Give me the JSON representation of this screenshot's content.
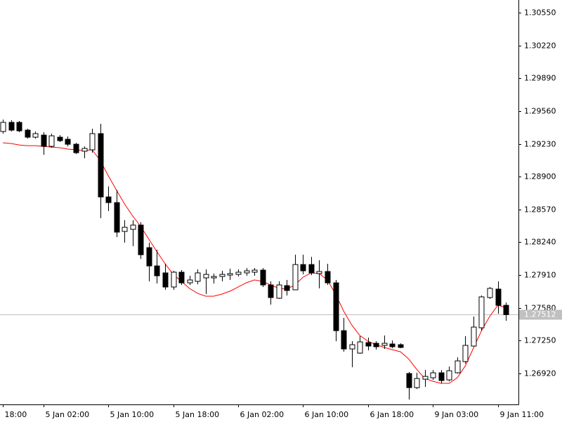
{
  "chart_data": {
    "type": "candlestick",
    "categories": [
      "18:00",
      null,
      null,
      null,
      null,
      "5 Jan 02:00",
      null,
      null,
      null,
      null,
      null,
      null,
      null,
      "5 Jan 10:00",
      null,
      null,
      null,
      null,
      null,
      null,
      null,
      "5 Jan 18:00",
      null,
      null,
      null,
      null,
      null,
      null,
      null,
      "6 Jan 02:00",
      null,
      null,
      null,
      null,
      null,
      null,
      null,
      "6 Jan 10:00",
      null,
      null,
      null,
      null,
      null,
      null,
      null,
      "6 Jan 18:00",
      null,
      null,
      null,
      null,
      null,
      null,
      null,
      "9 Jan 03:00",
      null,
      null,
      null,
      null,
      null,
      null,
      null,
      "9 Jan 11:00",
      null
    ],
    "open": [
      1.29354,
      1.29446,
      1.29446,
      1.29368,
      1.29297,
      1.29318,
      1.29205,
      1.29297,
      1.29276,
      1.29226,
      1.29156,
      1.2917,
      1.29333,
      1.28696,
      1.28639,
      1.28349,
      1.2837,
      1.28413,
      1.28186,
      1.28002,
      1.27932,
      1.2779,
      1.27939,
      1.27832,
      1.27847,
      1.27882,
      1.27882,
      1.27896,
      1.2791,
      1.27917,
      1.27932,
      1.27939,
      1.2796,
      1.27811,
      1.27677,
      1.27804,
      1.27762,
      1.28016,
      1.28016,
      1.27925,
      1.27946,
      1.27832,
      1.27351,
      1.27167,
      1.27125,
      1.27231,
      1.27224,
      1.27203,
      1.27217,
      1.2721,
      1.2692,
      1.26778,
      1.26863,
      1.26877,
      1.26927,
      1.26856,
      1.26927,
      1.2704,
      1.27196,
      1.2738,
      1.27684,
      1.27769,
      1.27606
    ],
    "high": [
      1.29474,
      1.29467,
      1.2946,
      1.29382,
      1.29354,
      1.29347,
      1.29333,
      1.29318,
      1.29304,
      1.29241,
      1.29205,
      1.29382,
      1.29432,
      1.28802,
      1.28766,
      1.28462,
      1.28462,
      1.28441,
      1.28236,
      1.28165,
      1.28024,
      1.27953,
      1.2796,
      1.27903,
      1.27967,
      1.27967,
      1.27925,
      1.27953,
      1.27974,
      1.27967,
      1.27981,
      1.27981,
      1.27981,
      1.27847,
      1.27847,
      1.27861,
      1.28115,
      1.28115,
      1.28094,
      1.28059,
      1.28024,
      1.27861,
      1.27479,
      1.27245,
      1.27295,
      1.27281,
      1.27245,
      1.27302,
      1.27252,
      1.27224,
      1.26934,
      1.26927,
      1.26955,
      1.26955,
      1.26955,
      1.2699,
      1.27082,
      1.27295,
      1.27493,
      1.27705,
      1.2779,
      1.27847,
      1.27634
    ],
    "low": [
      1.29333,
      1.29354,
      1.29347,
      1.29283,
      1.29283,
      1.2912,
      1.29191,
      1.29248,
      1.29205,
      1.29127,
      1.29085,
      1.29141,
      1.28483,
      1.28554,
      1.28292,
      1.28236,
      1.28201,
      1.28073,
      1.27847,
      1.27825,
      1.27762,
      1.27762,
      1.27811,
      1.27811,
      1.27818,
      1.27719,
      1.27825,
      1.27847,
      1.27861,
      1.27896,
      1.27903,
      1.27903,
      1.2779,
      1.27613,
      1.2767,
      1.27705,
      1.27762,
      1.27917,
      1.2791,
      1.27776,
      1.27811,
      1.27245,
      1.27139,
      1.26983,
      1.27118,
      1.27153,
      1.2716,
      1.27167,
      1.27175,
      1.27175,
      1.26658,
      1.26764,
      1.26785,
      1.26856,
      1.26821,
      1.26842,
      1.2692,
      1.27019,
      1.27196,
      1.27351,
      1.2767,
      1.27521,
      1.2745
    ],
    "close": [
      1.29446,
      1.29368,
      1.29361,
      1.29297,
      1.29333,
      1.29205,
      1.29311,
      1.29262,
      1.29226,
      1.29141,
      1.29184,
      1.29333,
      1.28696,
      1.28639,
      1.28342,
      1.28391,
      1.28413,
      1.28115,
      1.28002,
      1.27903,
      1.2779,
      1.27939,
      1.27832,
      1.27861,
      1.27932,
      1.27917,
      1.27896,
      1.27917,
      1.27925,
      1.27939,
      1.27953,
      1.2796,
      1.27811,
      1.27684,
      1.27811,
      1.27755,
      1.28016,
      1.27953,
      1.27932,
      1.27946,
      1.27832,
      1.27351,
      1.27167,
      1.2721,
      1.27238,
      1.27196,
      1.27189,
      1.27224,
      1.27189,
      1.27182,
      1.26778,
      1.2687,
      1.26891,
      1.26927,
      1.26849,
      1.26948,
      1.27047,
      1.27203,
      1.27387,
      1.27691,
      1.27776,
      1.27606,
      1.27512
    ],
    "moving_average": {
      "color": "#ff0000",
      "values": [
        1.29241,
        1.29234,
        1.29219,
        1.29212,
        1.29212,
        1.29205,
        1.29198,
        1.29191,
        1.29177,
        1.2917,
        1.29163,
        1.2917,
        1.29064,
        1.28908,
        1.28766,
        1.28625,
        1.28505,
        1.28399,
        1.28271,
        1.28144,
        1.28024,
        1.27917,
        1.27847,
        1.27776,
        1.27726,
        1.27698,
        1.27698,
        1.27719,
        1.27748,
        1.2779,
        1.27832,
        1.27861,
        1.27847,
        1.27811,
        1.27776,
        1.27769,
        1.27811,
        1.27889,
        1.27932,
        1.27925,
        1.27861,
        1.27719,
        1.27549,
        1.27408,
        1.27302,
        1.27245,
        1.2721,
        1.27182,
        1.2716,
        1.27139,
        1.27068,
        1.26962,
        1.2687,
        1.26842,
        1.26821,
        1.26821,
        1.26877,
        1.26997,
        1.27175,
        1.27351,
        1.27493,
        1.27606,
        1.27585
      ]
    },
    "up_color": "#ffffff",
    "down_color": "#000000",
    "current_price": 1.27512,
    "ylim": [
      1.26609,
      1.30677
    ],
    "yticks": [
      {
        "value": 1.3055,
        "label": "1.30550"
      },
      {
        "value": 1.3022,
        "label": "1.30220"
      },
      {
        "value": 1.2989,
        "label": "1.29890"
      },
      {
        "value": 1.2956,
        "label": "1.29560"
      },
      {
        "value": 1.2923,
        "label": "1.29230"
      },
      {
        "value": 1.289,
        "label": "1.28900"
      },
      {
        "value": 1.2857,
        "label": "1.28570"
      },
      {
        "value": 1.2824,
        "label": "1.28240"
      },
      {
        "value": 1.2791,
        "label": "1.27910"
      },
      {
        "value": 1.2758,
        "label": "1.27580"
      },
      {
        "value": 1.2725,
        "label": "1.27250"
      },
      {
        "value": 1.2692,
        "label": "1.26920"
      }
    ]
  }
}
